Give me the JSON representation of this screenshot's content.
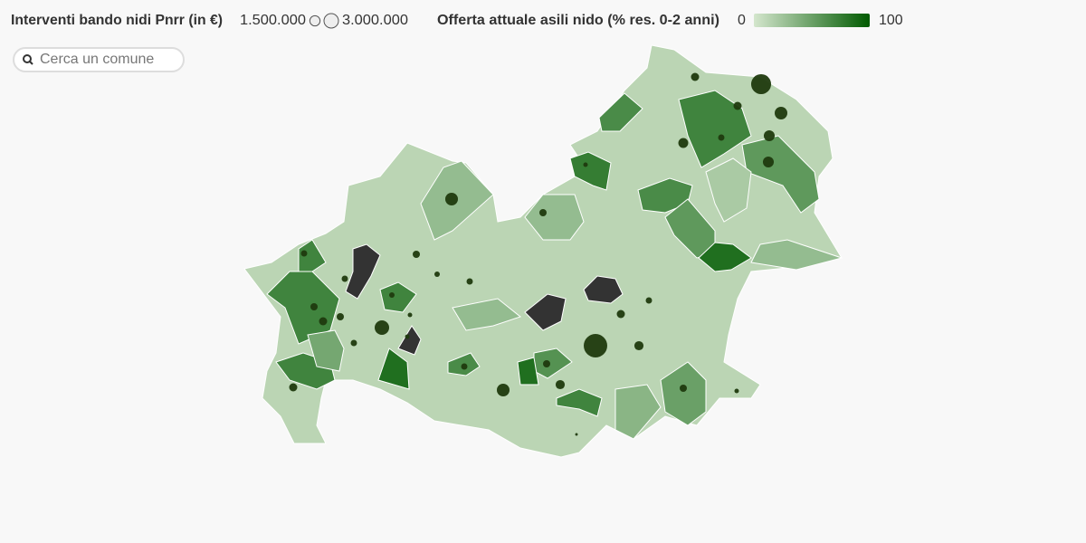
{
  "legend": {
    "size_title": "Interventi bando nidi Pnrr (in €)",
    "size_ticks": [
      {
        "value": 1500000,
        "label": "1.500.000"
      },
      {
        "value": 3000000,
        "label": "3.000.000"
      }
    ],
    "color_title": "Offerta attuale asili nido (% res. 0-2 anni)",
    "color_range": [
      0,
      100
    ],
    "colors": [
      "#d4e6cd",
      "#005a00"
    ],
    "missing_color": "#333333",
    "bubble_color": "#1f3a0e"
  },
  "search": {
    "placeholder": "Cerca un comune"
  },
  "base_value": 12,
  "areas": [
    65,
    70,
    55,
    65,
    55,
    85,
    75,
    30,
    30,
    null,
    null,
    null,
    null,
    70,
    70,
    70,
    70,
    85,
    60,
    70,
    85,
    50,
    35,
    65,
    30,
    30,
    20,
    45
  ],
  "bubbles": [
    5700000,
    2300000,
    1700000,
    1700000,
    950000,
    570000,
    950000,
    1400000,
    290000,
    750000,
    2300000,
    750000,
    420000,
    570000,
    570000,
    570000,
    750000,
    950000,
    750000,
    570000,
    3000000,
    420000,
    290000,
    290000,
    950000,
    570000,
    7900000,
    1200000,
    750000,
    1200000,
    2300000,
    570000,
    750000,
    290000,
    100000,
    950000
  ]
}
